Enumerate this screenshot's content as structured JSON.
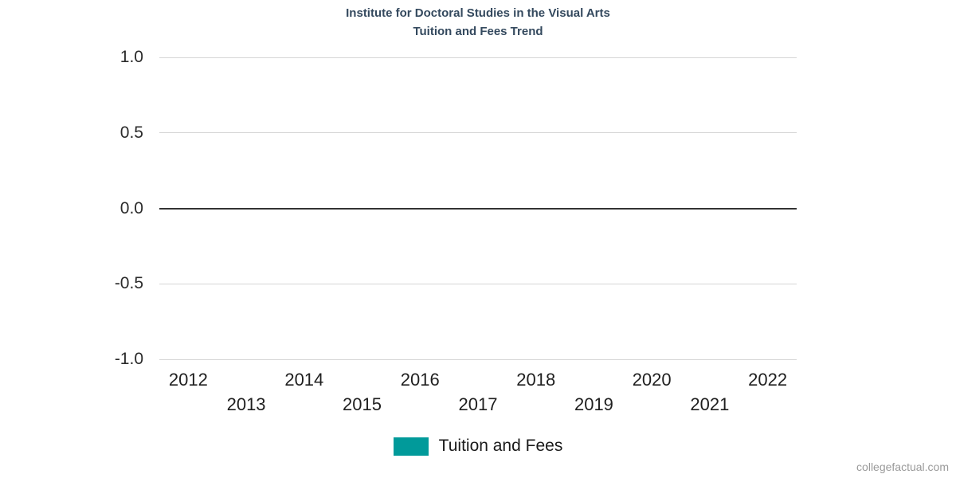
{
  "page": {
    "title_line1": "Institute for Doctoral Studies in the Visual Arts",
    "title_line2": "Tuition and Fees Trend",
    "watermark": "collegefactual.com"
  },
  "legend": {
    "label": "Tuition and Fees",
    "swatch_color": "#019a9a"
  },
  "colors": {
    "title": "#34495e",
    "gridline": "#d6d6d6",
    "zero_line": "#333333",
    "axis_label": "#1f1f1f",
    "watermark": "#9a9a9a"
  },
  "chart_data": {
    "type": "line",
    "title": "Institute for Doctoral Studies in the Visual Arts Tuition and Fees Trend",
    "categories": [
      "2012",
      "2013",
      "2014",
      "2015",
      "2016",
      "2017",
      "2018",
      "2019",
      "2020",
      "2021",
      "2022"
    ],
    "series": [
      {
        "name": "Tuition and Fees",
        "color": "#019a9a",
        "values": []
      }
    ],
    "xlabel": "",
    "ylabel": "",
    "ylim": [
      -1.0,
      1.0
    ],
    "yticks": [
      1.0,
      0.5,
      0.0,
      -0.5,
      -1.0
    ],
    "ytick_labels": [
      "1.0",
      "0.5",
      "0.0",
      "-0.5",
      "-1.0"
    ],
    "grid": true,
    "legend_position": "bottom"
  }
}
